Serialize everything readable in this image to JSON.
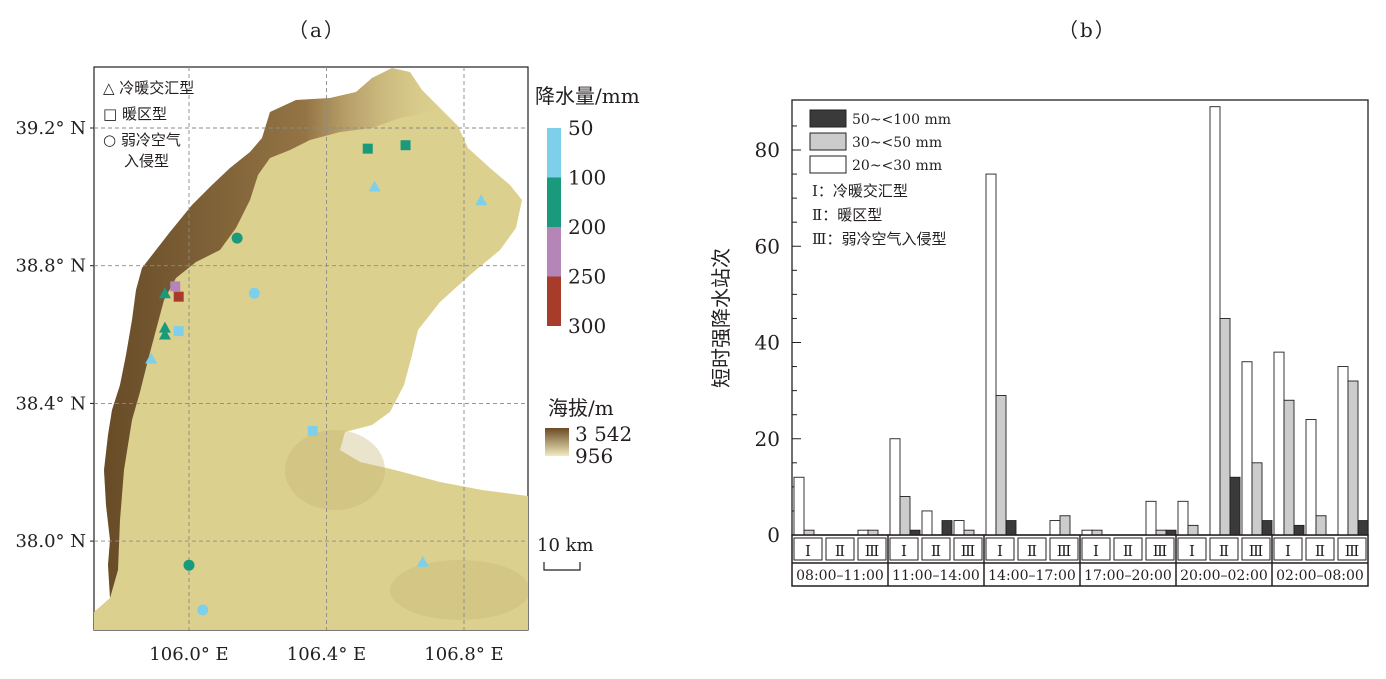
{
  "panel_a": {
    "label": "（a）",
    "legend_types": [
      "△ 冷暖交汇型",
      "□ 暖区型",
      "○ 弱冷空气",
      "入侵型"
    ],
    "colorbar_title": "降水量/mm",
    "colorbar_ticks": [
      "50",
      "100",
      "200",
      "250",
      "300"
    ],
    "colorbar_colors": [
      "#7ecfea",
      "#1a9a7c",
      "#b585b8",
      "#a83c2b"
    ],
    "elev_title": "海拔/m",
    "elev_max": "3 542",
    "elev_min": "956",
    "scale_label": "10 km",
    "lat_labels": [
      "39.2° N",
      "38.8° N",
      "38.4° N",
      "38.0° N"
    ],
    "lon_labels": [
      "106.0° E",
      "106.4° E",
      "106.8° E"
    ],
    "stations": [
      {
        "shape": "square",
        "lon": 106.52,
        "lat": 39.14,
        "class": 1
      },
      {
        "shape": "square",
        "lon": 106.63,
        "lat": 39.15,
        "class": 1
      },
      {
        "shape": "triangle",
        "lon": 106.54,
        "lat": 39.03,
        "class": 0
      },
      {
        "shape": "triangle",
        "lon": 106.85,
        "lat": 38.99,
        "class": 0
      },
      {
        "shape": "circle",
        "lon": 106.14,
        "lat": 38.88,
        "class": 1
      },
      {
        "shape": "circle",
        "lon": 106.19,
        "lat": 38.72,
        "class": 0
      },
      {
        "shape": "square",
        "lon": 105.96,
        "lat": 38.74,
        "class": 2
      },
      {
        "shape": "square",
        "lon": 105.97,
        "lat": 38.71,
        "class": 3
      },
      {
        "shape": "triangle",
        "lon": 105.93,
        "lat": 38.72,
        "class": 1
      },
      {
        "shape": "triangle",
        "lon": 105.93,
        "lat": 38.62,
        "class": 1
      },
      {
        "shape": "triangle",
        "lon": 105.93,
        "lat": 38.6,
        "class": 1
      },
      {
        "shape": "square",
        "lon": 105.97,
        "lat": 38.61,
        "class": 0
      },
      {
        "shape": "triangle",
        "lon": 105.89,
        "lat": 38.53,
        "class": 0
      },
      {
        "shape": "square",
        "lon": 106.36,
        "lat": 38.32,
        "class": 0
      },
      {
        "shape": "circle",
        "lon": 106.0,
        "lat": 37.93,
        "class": 1
      },
      {
        "shape": "triangle",
        "lon": 106.68,
        "lat": 37.94,
        "class": 0
      },
      {
        "shape": "circle",
        "lon": 106.04,
        "lat": 37.8,
        "class": 0
      }
    ]
  },
  "panel_b": {
    "label": "（b）"
  },
  "chart_data": {
    "type": "bar",
    "ylabel": "短时强降水站次",
    "ylim": [
      0,
      90
    ],
    "yticks": [
      0,
      20,
      40,
      60,
      80
    ],
    "subcategories": [
      "Ⅰ",
      "Ⅱ",
      "Ⅲ"
    ],
    "groups": [
      "08:00–11:00",
      "11:00–14:00",
      "14:00–17:00",
      "17:00–20:00",
      "20:00–02:00",
      "02:00–08:00"
    ],
    "series": [
      {
        "name": "20~<30 mm",
        "color": "#ffffff",
        "values": [
          [
            12,
            0,
            1
          ],
          [
            20,
            5,
            3
          ],
          [
            75,
            0,
            3
          ],
          [
            1,
            0,
            7
          ],
          [
            7,
            89,
            36
          ],
          [
            38,
            24,
            35
          ]
        ]
      },
      {
        "name": "30~<50 mm",
        "color": "#cccccc",
        "values": [
          [
            1,
            0,
            1
          ],
          [
            8,
            0,
            1
          ],
          [
            29,
            0,
            4
          ],
          [
            1,
            0,
            1
          ],
          [
            2,
            45,
            15
          ],
          [
            28,
            4,
            32
          ]
        ]
      },
      {
        "name": "50~<100 mm",
        "color": "#3a3a3a",
        "values": [
          [
            0,
            0,
            0
          ],
          [
            1,
            3,
            0
          ],
          [
            3,
            0,
            0
          ],
          [
            0,
            0,
            1
          ],
          [
            0,
            12,
            3
          ],
          [
            2,
            0,
            3
          ]
        ]
      }
    ],
    "legend_entries": [
      "50~<100 mm",
      "30~<50 mm",
      "20~<30 mm"
    ],
    "type_legend": [
      "Ⅰ：冷暖交汇型",
      "Ⅱ：暖区型",
      "Ⅲ：弱冷空气入侵型"
    ]
  }
}
